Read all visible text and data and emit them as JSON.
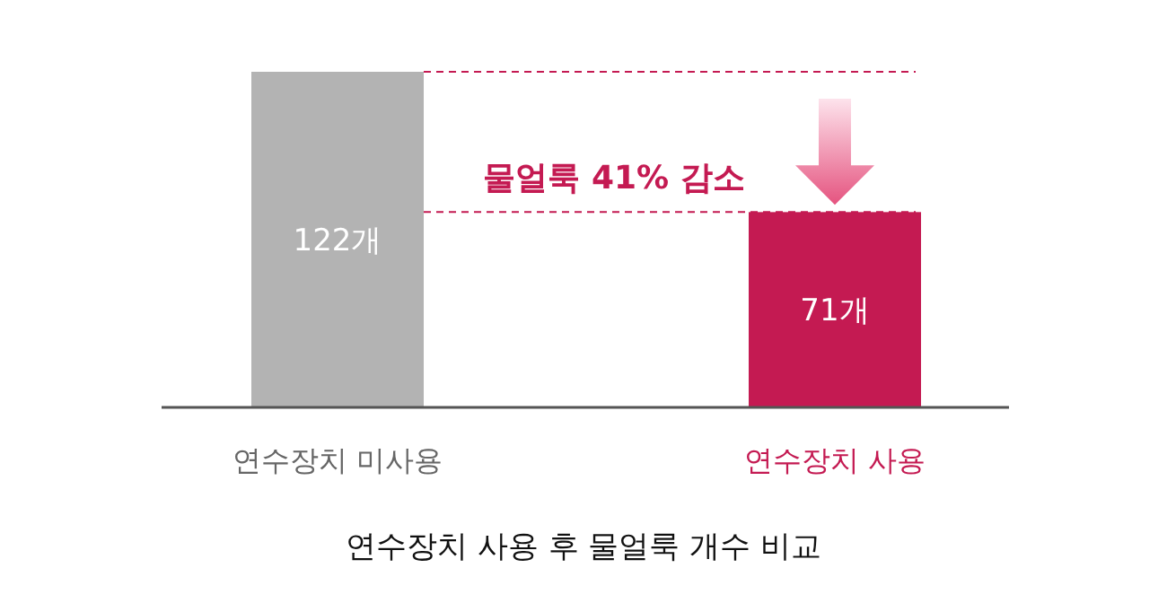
{
  "chart_data": {
    "type": "bar",
    "title": "연수장치 사용 후 물얼룩 개수 비교",
    "categories": [
      "연수장치 미사용",
      "연수장치 사용"
    ],
    "values": [
      122,
      71
    ],
    "colors": [
      "#b3b3b3",
      "#c41a52"
    ],
    "value_labels": [
      "122개",
      "71개"
    ],
    "ref_lines": [
      {
        "axis": "y",
        "value": 122,
        "color": "#c41a52",
        "line_style": "dashed"
      },
      {
        "axis": "y",
        "value": 71,
        "color": "#c41a52",
        "line_style": "dashed"
      }
    ],
    "annotations": [
      "물얼룩 41% 감소"
    ]
  }
}
